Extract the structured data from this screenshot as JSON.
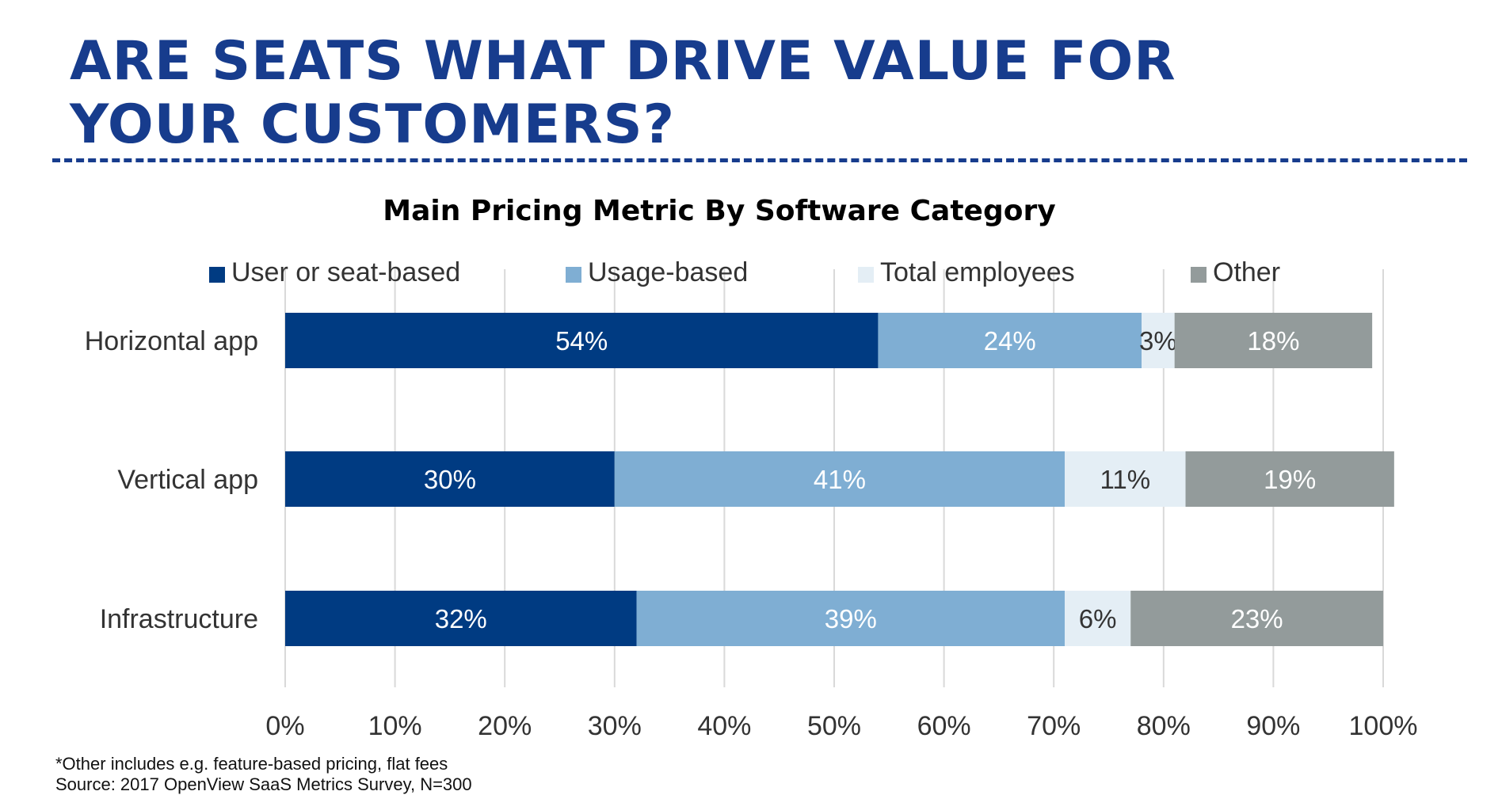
{
  "page": {
    "title_lines": [
      "ARE SEATS WHAT DRIVE VALUE FOR",
      "YOUR CUSTOMERS?"
    ],
    "footnote": "*Other includes e.g. feature-based pricing, flat fees",
    "source": "Source: 2017 OpenView SaaS Metrics Survey, N=300"
  },
  "colors": {
    "title": "#173c8d",
    "grid": "#d9d9d9",
    "dark_text": "#333333",
    "light_text": "#ffffff"
  },
  "chart_data": {
    "type": "bar",
    "orientation": "horizontal",
    "stacked": true,
    "title": "Main Pricing Metric By Software Category",
    "categories": [
      "Horizontal app",
      "Vertical app",
      "Infrastructure"
    ],
    "series": [
      {
        "name": "User or seat-based",
        "color": "#003b82",
        "label_color": "#ffffff",
        "values": [
          54,
          30,
          32
        ],
        "labels": [
          "54%",
          "30%",
          "32%"
        ]
      },
      {
        "name": "Usage-based",
        "color": "#7faed3",
        "label_color": "#ffffff",
        "values": [
          24,
          41,
          39
        ],
        "labels": [
          "24%",
          "41%",
          "39%"
        ]
      },
      {
        "name": "Total employees",
        "color": "#e4eef5",
        "label_color": "#333333",
        "values": [
          3,
          11,
          6
        ],
        "labels": [
          "3%",
          "11%",
          "6%"
        ]
      },
      {
        "name": "Other",
        "color": "#939b9b",
        "label_color": "#ffffff",
        "values": [
          18,
          19,
          23
        ],
        "labels": [
          "18%",
          "19%",
          "23%"
        ]
      }
    ],
    "x_ticks": [
      "0%",
      "10%",
      "20%",
      "30%",
      "40%",
      "50%",
      "60%",
      "70%",
      "80%",
      "90%",
      "100%"
    ],
    "xlim": [
      0,
      100
    ],
    "xlabel": "",
    "ylabel": "",
    "grid": true,
    "legend": "top"
  }
}
